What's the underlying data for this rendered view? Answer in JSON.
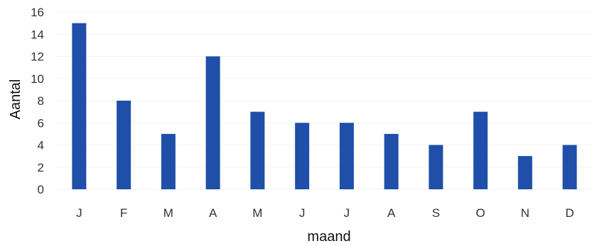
{
  "chart_data": {
    "type": "bar",
    "title": "",
    "xlabel": "maand",
    "ylabel": "Aantal",
    "categories": [
      "J",
      "F",
      "M",
      "A",
      "M",
      "J",
      "J",
      "A",
      "S",
      "O",
      "N",
      "D"
    ],
    "values": [
      15,
      8,
      5,
      12,
      7,
      6,
      6,
      5,
      4,
      7,
      3,
      4
    ],
    "ylim": [
      0,
      16
    ],
    "yticks": [
      "0",
      "2",
      "4",
      "6",
      "8",
      "10",
      "12",
      "14",
      "16"
    ],
    "grid": true,
    "legend": "none",
    "bar_color": "#1f4fa8"
  }
}
